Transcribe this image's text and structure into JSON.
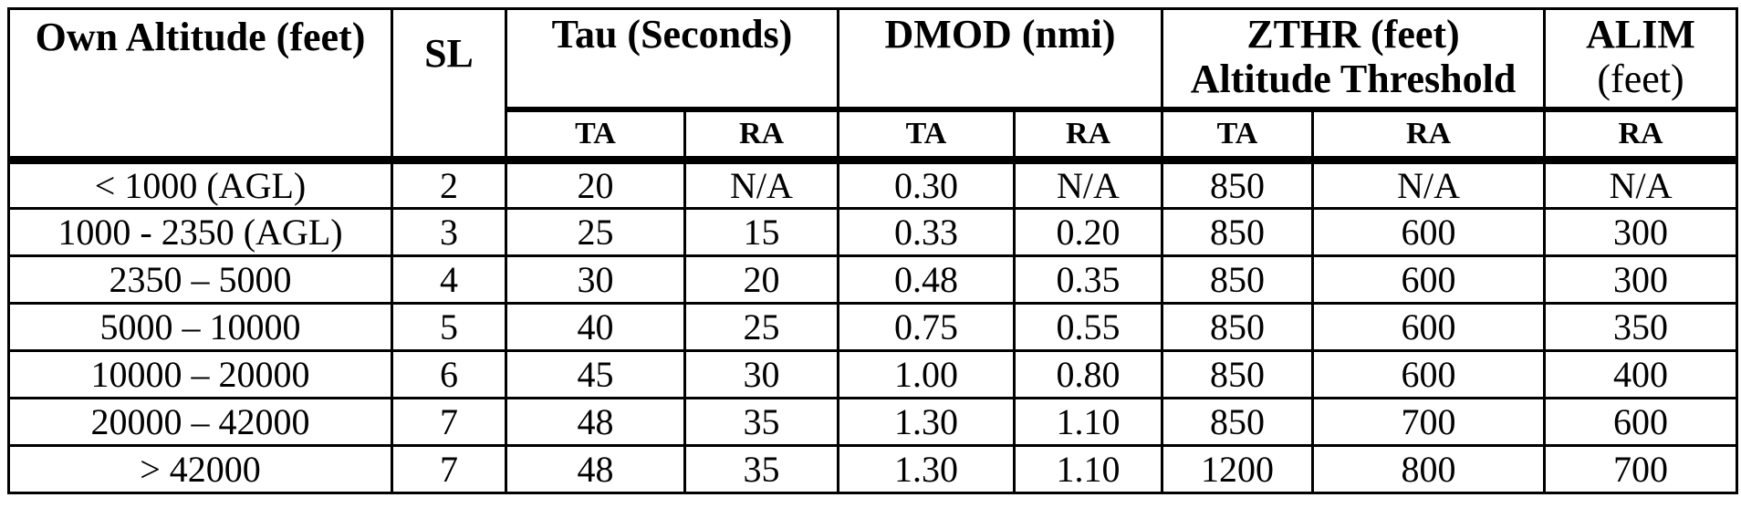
{
  "table": {
    "header": {
      "own_altitude": "Own Altitude (feet)",
      "sl": "SL",
      "groups": [
        {
          "line1": "Tau (Seconds)",
          "line2": ""
        },
        {
          "line1": "DMOD (nmi)",
          "line2": ""
        },
        {
          "line1": "ZTHR (feet)",
          "line2": "Altitude Threshold"
        },
        {
          "line1": "ALIM",
          "line2": "(feet)"
        }
      ],
      "subheaders": [
        "TA",
        "RA",
        "TA",
        "RA",
        "TA",
        "RA",
        "RA"
      ]
    },
    "rows": [
      [
        "< 1000 (AGL)",
        "2",
        "20",
        "N/A",
        "0.30",
        "N/A",
        "850",
        "N/A",
        "N/A"
      ],
      [
        "1000 - 2350 (AGL)",
        "3",
        "25",
        "15",
        "0.33",
        "0.20",
        "850",
        "600",
        "300"
      ],
      [
        "2350 – 5000",
        "4",
        "30",
        "20",
        "0.48",
        "0.35",
        "850",
        "600",
        "300"
      ],
      [
        "5000 – 10000",
        "5",
        "40",
        "25",
        "0.75",
        "0.55",
        "850",
        "600",
        "350"
      ],
      [
        "10000 – 20000",
        "6",
        "45",
        "30",
        "1.00",
        "0.80",
        "850",
        "600",
        "400"
      ],
      [
        "20000 – 42000",
        "7",
        "48",
        "35",
        "1.30",
        "1.10",
        "850",
        "700",
        "600"
      ],
      [
        "> 42000",
        "7",
        "48",
        "35",
        "1.30",
        "1.10",
        "1200",
        "800",
        "700"
      ]
    ],
    "colors": {
      "border": "#000000",
      "background": "#ffffff",
      "text": "#000000"
    }
  }
}
